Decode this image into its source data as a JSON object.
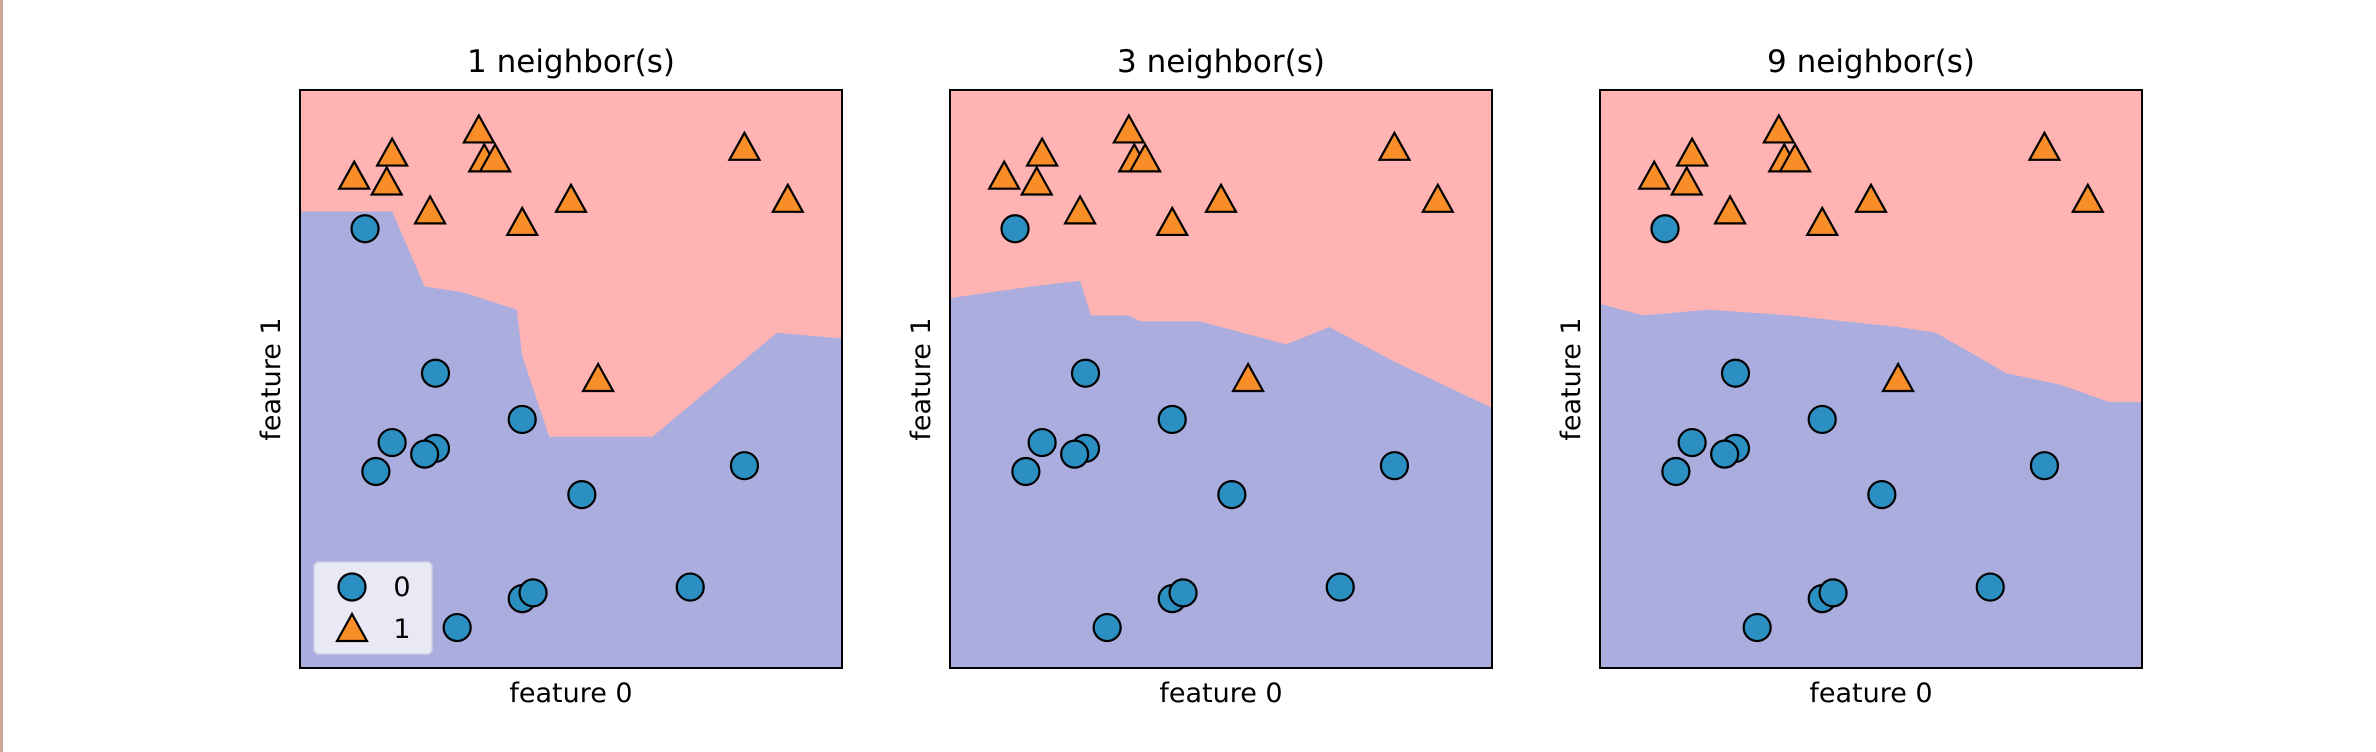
{
  "chart_data": [
    {
      "type": "scatter",
      "title": "1 neighbor(s)",
      "xlabel": "feature 0",
      "ylabel": "feature 1",
      "xlim": [
        0,
        100
      ],
      "ylim": [
        0,
        100
      ],
      "show_ticks": false,
      "grid": false,
      "legend": {
        "location": "lower-left",
        "entries": [
          "0",
          "1"
        ]
      },
      "background_regions": {
        "class_0_color": "#aaadde",
        "class_1_color": "#ffb3b3",
        "boundary_x": [
          0,
          17,
          23,
          30,
          40,
          41,
          46,
          55,
          65,
          88,
          100
        ],
        "boundary_y": [
          79,
          79,
          66,
          65,
          62,
          54,
          40,
          40,
          40,
          58,
          57
        ]
      },
      "series": [
        {
          "name": "0",
          "marker": "circle",
          "color": "#2b8fc1",
          "x": [
            12,
            25,
            25,
            23,
            14,
            17,
            41,
            52,
            82,
            72,
            41,
            43,
            29
          ],
          "y": [
            76,
            51,
            38,
            37,
            34,
            39,
            43,
            30,
            35,
            14,
            12,
            13,
            7
          ]
        },
        {
          "name": "1",
          "marker": "triangle",
          "color": "#f98d28",
          "x": [
            10,
            17,
            16,
            33,
            34,
            36,
            24,
            41,
            50,
            55,
            82,
            90
          ],
          "y": [
            85,
            89,
            84,
            93,
            88,
            88,
            79,
            77,
            81,
            50,
            90,
            81
          ]
        }
      ]
    },
    {
      "type": "scatter",
      "title": "3 neighbor(s)",
      "xlabel": "feature 0",
      "ylabel": "feature 1",
      "xlim": [
        0,
        100
      ],
      "ylim": [
        0,
        100
      ],
      "show_ticks": false,
      "grid": false,
      "background_regions": {
        "class_0_color": "#aaadde",
        "class_1_color": "#ffb3b3",
        "boundary_x": [
          0,
          15,
          24,
          26,
          33,
          35,
          46,
          62,
          70,
          82,
          100
        ],
        "boundary_y": [
          64,
          66,
          67,
          61,
          61,
          60,
          60,
          56,
          59,
          53,
          45
        ]
      },
      "series": [
        {
          "name": "0",
          "marker": "circle",
          "color": "#2b8fc1",
          "x": [
            12,
            25,
            25,
            23,
            14,
            17,
            41,
            52,
            82,
            72,
            41,
            43,
            29
          ],
          "y": [
            76,
            51,
            38,
            37,
            34,
            39,
            43,
            30,
            35,
            14,
            12,
            13,
            7
          ]
        },
        {
          "name": "1",
          "marker": "triangle",
          "color": "#f98d28",
          "x": [
            10,
            17,
            16,
            33,
            34,
            36,
            24,
            41,
            50,
            55,
            82,
            90
          ],
          "y": [
            85,
            89,
            84,
            93,
            88,
            88,
            79,
            77,
            81,
            50,
            90,
            81
          ]
        }
      ]
    },
    {
      "type": "scatter",
      "title": "9 neighbor(s)",
      "xlabel": "feature 0",
      "ylabel": "feature 1",
      "xlim": [
        0,
        100
      ],
      "ylim": [
        0,
        100
      ],
      "show_ticks": false,
      "grid": false,
      "background_regions": {
        "class_0_color": "#aaadde",
        "class_1_color": "#ffb3b3",
        "boundary_x": [
          0,
          8,
          20,
          35,
          45,
          55,
          62,
          75,
          85,
          94,
          100
        ],
        "boundary_y": [
          63,
          61,
          62,
          61,
          60,
          59,
          58,
          51,
          49,
          46,
          46
        ]
      },
      "series": [
        {
          "name": "0",
          "marker": "circle",
          "color": "#2b8fc1",
          "x": [
            12,
            25,
            25,
            23,
            14,
            17,
            41,
            52,
            82,
            72,
            41,
            43,
            29
          ],
          "y": [
            76,
            51,
            38,
            37,
            34,
            39,
            43,
            30,
            35,
            14,
            12,
            13,
            7
          ]
        },
        {
          "name": "1",
          "marker": "triangle",
          "color": "#f98d28",
          "x": [
            10,
            17,
            16,
            33,
            34,
            36,
            24,
            41,
            50,
            55,
            82,
            90
          ],
          "y": [
            85,
            89,
            84,
            93,
            88,
            88,
            79,
            77,
            81,
            50,
            90,
            81
          ]
        }
      ]
    }
  ]
}
